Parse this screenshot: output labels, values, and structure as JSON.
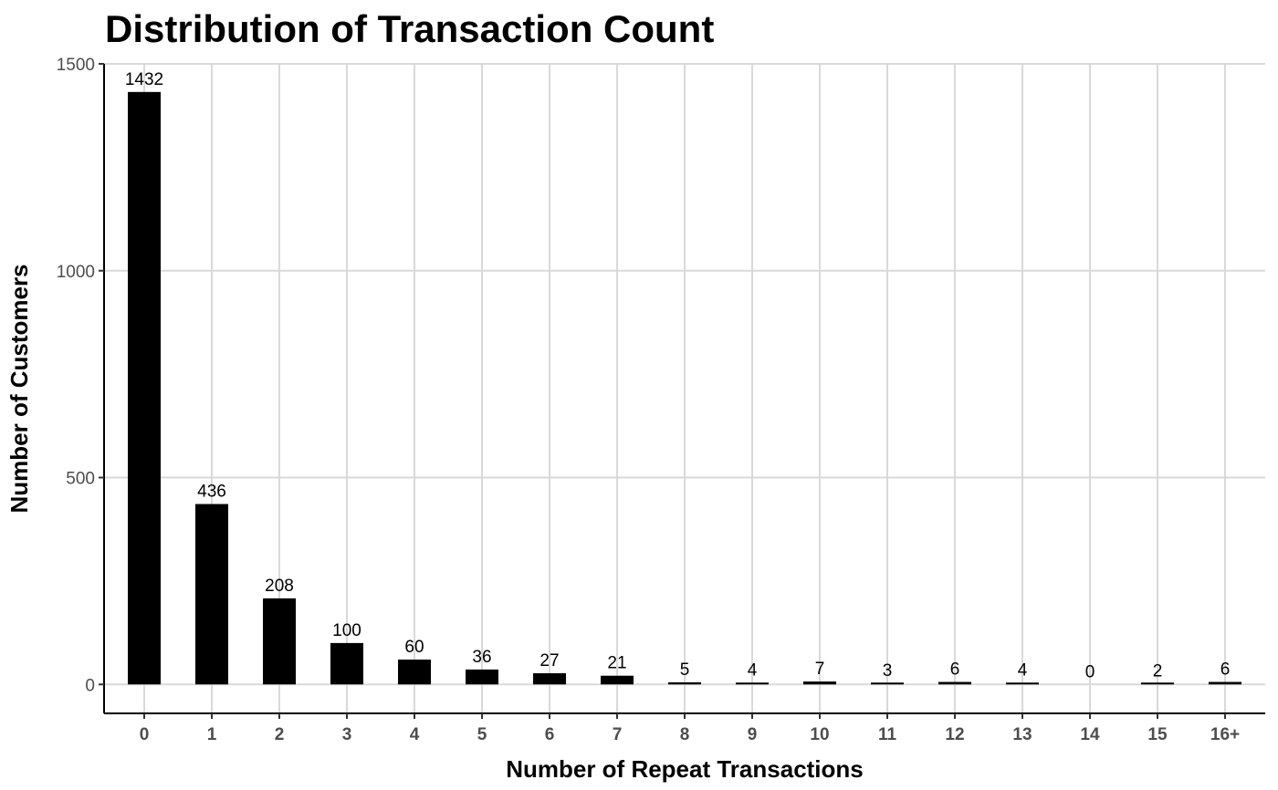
{
  "chart_data": {
    "type": "bar",
    "title": "Distribution of Transaction Count",
    "xlabel": "Number of Repeat Transactions",
    "ylabel": "Number of Customers",
    "categories": [
      "0",
      "1",
      "2",
      "3",
      "4",
      "5",
      "6",
      "7",
      "8",
      "9",
      "10",
      "11",
      "12",
      "13",
      "14",
      "15",
      "16+"
    ],
    "values": [
      1432,
      436,
      208,
      100,
      60,
      36,
      27,
      21,
      5,
      4,
      7,
      3,
      6,
      4,
      0,
      2,
      6
    ],
    "ylim": [
      -70,
      1500
    ],
    "yticks": [
      0,
      500,
      1000,
      1500
    ],
    "grid": true,
    "bar_color": "#000000",
    "grid_color": "#d9d9d9"
  }
}
